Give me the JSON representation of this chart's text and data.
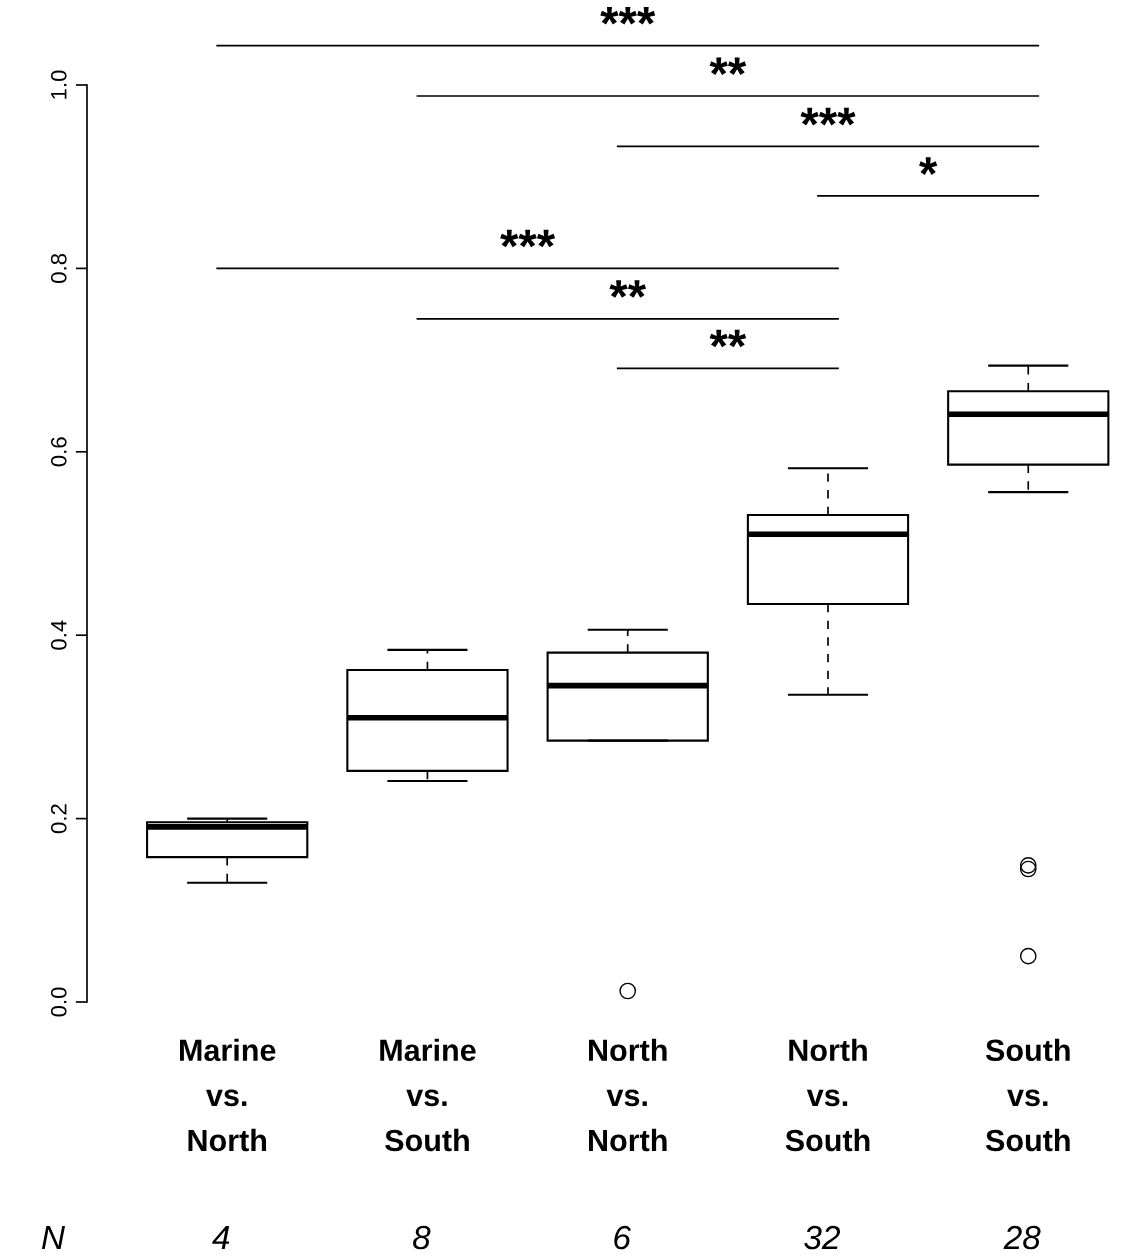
{
  "chart_data": {
    "type": "box",
    "categories": [
      "Marine\nvs.\nNorth",
      "Marine\nvs.\nSouth",
      "North\nvs.\nNorth",
      "North\nvs.\nSouth",
      "South\nvs.\nSouth"
    ],
    "boxes": [
      {
        "low": 0.13,
        "q1": 0.158,
        "median": 0.191,
        "q3": 0.196,
        "high": 0.2
      },
      {
        "low": 0.241,
        "q1": 0.252,
        "median": 0.31,
        "q3": 0.362,
        "high": 0.384
      },
      {
        "low": 0.285,
        "q1": 0.285,
        "median": 0.345,
        "q3": 0.381,
        "high": 0.406,
        "outliers": [
          0.012
        ]
      },
      {
        "low": 0.335,
        "q1": 0.434,
        "median": 0.51,
        "q3": 0.531,
        "high": 0.582
      },
      {
        "low": 0.556,
        "q1": 0.586,
        "median": 0.641,
        "q3": 0.666,
        "high": 0.694,
        "outliers": [
          0.149,
          0.145,
          0.05
        ]
      }
    ],
    "color": "#000000",
    "ylim": [
      0,
      1.0
    ],
    "yticks": [
      {
        "value": 0,
        "label": "0.0"
      },
      0.2,
      0.4,
      0.6,
      0.8,
      {
        "value": 1.0,
        "label": "1.0"
      }
    ],
    "grid": false,
    "annotations": [
      "***",
      "**",
      "***",
      "*",
      "***",
      "**",
      "**",
      "N",
      "4",
      "8",
      "6",
      "32",
      "28"
    ]
  }
}
